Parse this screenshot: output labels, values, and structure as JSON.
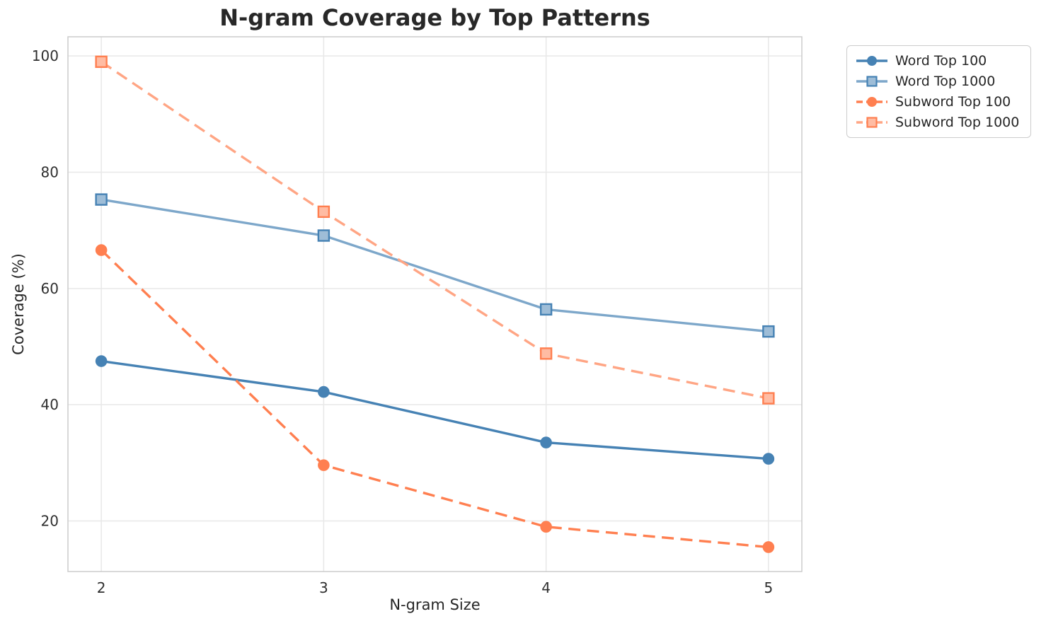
{
  "title": "N-gram Coverage by Top Patterns",
  "chart_data": {
    "type": "line",
    "title": "N-gram Coverage by Top Patterns",
    "xlabel": "N-gram Size",
    "ylabel": "Coverage (%)",
    "x": [
      2,
      3,
      4,
      5
    ],
    "x_tick_labels": [
      "2",
      "3",
      "4",
      "5"
    ],
    "y_ticks": [
      20,
      40,
      60,
      80,
      100
    ],
    "xlim": [
      1.85,
      5.15
    ],
    "ylim": [
      11.3,
      103.3
    ],
    "grid": true,
    "legend_position": "upper right",
    "series": [
      {
        "name": "Word Top 100",
        "values": [
          47.5,
          42.2,
          33.5,
          30.7
        ],
        "color": "#4682B4",
        "marker": "circle",
        "marker_edge": "#4682B4",
        "line_style": "solid"
      },
      {
        "name": "Word Top 1000",
        "values": [
          75.3,
          69.1,
          56.4,
          52.6
        ],
        "color": "#7DA7CA",
        "marker": "square",
        "marker_edge": "#4682B4",
        "line_style": "solid"
      },
      {
        "name": "Subword Top 100",
        "values": [
          66.6,
          29.6,
          19.0,
          15.5
        ],
        "color": "#FF7F50",
        "marker": "circle",
        "marker_edge": "#FF7F50",
        "line_style": "dashed"
      },
      {
        "name": "Subword Top 1000",
        "values": [
          99.0,
          73.2,
          48.8,
          41.1
        ],
        "color": "#FFA584",
        "marker": "square",
        "marker_edge": "#FF7F50",
        "line_style": "dashed"
      }
    ]
  },
  "colors": {
    "grid": "#e8e8e8",
    "spine": "#cccccc",
    "text": "#262626",
    "title": "#282828",
    "background": "#ffffff",
    "legend_border": "#cccccc"
  }
}
